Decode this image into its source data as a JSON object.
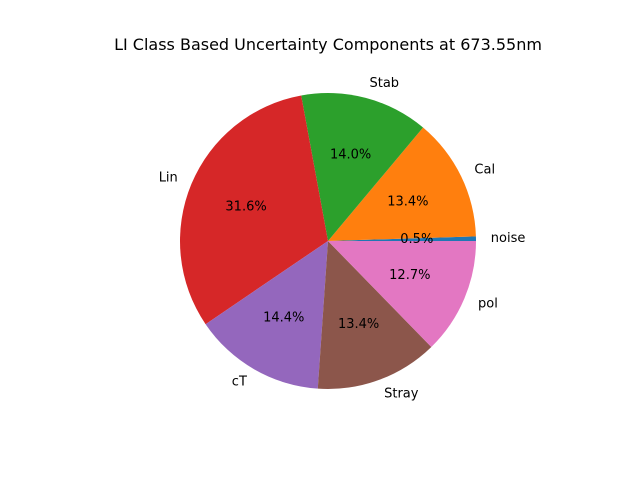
{
  "chart_data": {
    "type": "pie",
    "title": "LI Class Based Uncertainty Components at 673.55nm",
    "start_angle_deg": 0,
    "direction": "counterclockwise",
    "autopct_format": "%.1f%%",
    "slices": [
      {
        "label": "noise",
        "value": 0.5,
        "pct_text": "0.5%",
        "color": "#1f77b4"
      },
      {
        "label": "Cal",
        "value": 13.4,
        "pct_text": "13.4%",
        "color": "#ff7f0e"
      },
      {
        "label": "Stab",
        "value": 14.0,
        "pct_text": "14.0%",
        "color": "#2ca02c"
      },
      {
        "label": "Lin",
        "value": 31.6,
        "pct_text": "31.6%",
        "color": "#d62728"
      },
      {
        "label": "cT",
        "value": 14.4,
        "pct_text": "14.4%",
        "color": "#9467bd"
      },
      {
        "label": "Stray",
        "value": 13.4,
        "pct_text": "13.4%",
        "color": "#8c564b"
      },
      {
        "label": "pol",
        "value": 12.7,
        "pct_text": "12.7%",
        "color": "#e377c2"
      }
    ]
  }
}
